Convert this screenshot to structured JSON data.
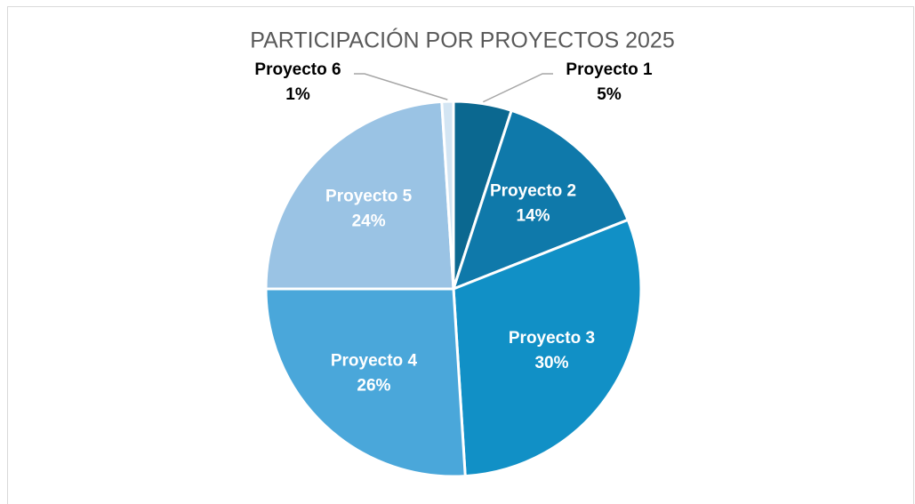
{
  "chart_data": {
    "type": "pie",
    "title": "PARTICIPACIÓN POR PROYECTOS 2025",
    "categories": [
      "Proyecto 1",
      "Proyecto 2",
      "Proyecto 3",
      "Proyecto 4",
      "Proyecto 5",
      "Proyecto 6"
    ],
    "values": [
      5,
      14,
      30,
      26,
      24,
      1
    ],
    "value_labels": [
      "5%",
      "14%",
      "30%",
      "26%",
      "24%",
      "1%"
    ],
    "colors": [
      "#0b6890",
      "#0f79aa",
      "#1190c6",
      "#4aa7da",
      "#9ac3e4",
      "#d3e5f3"
    ]
  }
}
